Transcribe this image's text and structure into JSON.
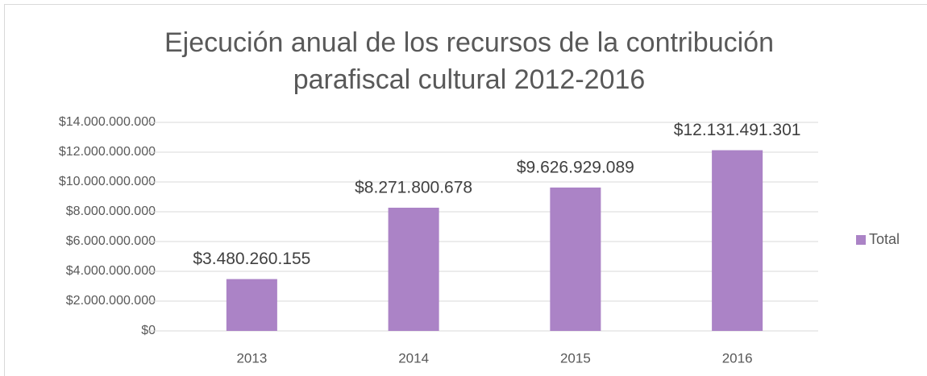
{
  "chart_data": {
    "type": "bar",
    "title": "Ejecución anual de los recursos de la contribución parafiscal cultural 2012-2016",
    "categories": [
      "2013",
      "2014",
      "2015",
      "2016"
    ],
    "series": [
      {
        "name": "Total",
        "color": "#ab83c6",
        "values": [
          3480260155,
          8271800678,
          9626929089,
          12131491301
        ],
        "value_labels": [
          "$3.480.260.155",
          "$8.271.800.678",
          "$9.626.929.089",
          "$12.131.491.301"
        ]
      }
    ],
    "ylim": [
      0,
      14000000000
    ],
    "yticks": [
      {
        "value": 0,
        "label": "$0"
      },
      {
        "value": 2000000000,
        "label": "$2.000.000.000"
      },
      {
        "value": 4000000000,
        "label": "$4.000.000.000"
      },
      {
        "value": 6000000000,
        "label": "$6.000.000.000"
      },
      {
        "value": 8000000000,
        "label": "$8.000.000.000"
      },
      {
        "value": 10000000000,
        "label": "$10.000.000.000"
      },
      {
        "value": 12000000000,
        "label": "$12.000.000.000"
      },
      {
        "value": 14000000000,
        "label": "$14.000.000.000"
      }
    ],
    "grid": true,
    "legend": "right"
  }
}
